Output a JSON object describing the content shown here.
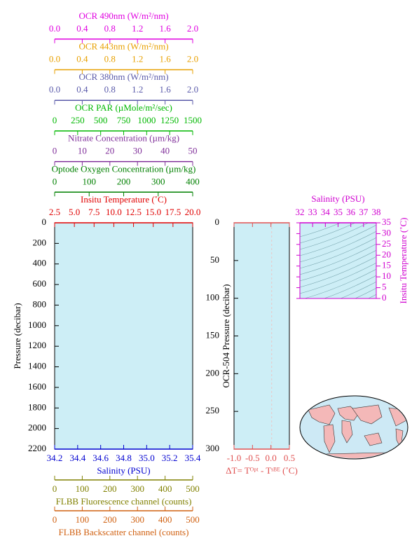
{
  "chart_data": [
    {
      "type": "profile",
      "ylabel": "Pressure (decibar)",
      "ylim": [
        0,
        2200
      ],
      "yticks": [
        0,
        200,
        400,
        600,
        800,
        1000,
        1200,
        1400,
        1600,
        1800,
        2000,
        2200
      ],
      "x_axes": [
        {
          "label": "Insitu Temperature (˚C)",
          "color": "#e00000",
          "side": "top",
          "xlim": [
            2.5,
            20
          ],
          "xticks": [
            2.5,
            {
              "value": 5,
              "label": "5.0"
            },
            7.5,
            {
              "value": 10,
              "label": "10.0"
            },
            12.5,
            {
              "value": 15,
              "label": "15.0"
            },
            17.5,
            {
              "value": 20,
              "label": "20.0"
            }
          ]
        },
        {
          "label": "Optode Oxygen Concentration (µm/kg)",
          "color": "#008000",
          "side": "top",
          "xlim": [
            0,
            400
          ],
          "xticks": [
            0,
            100,
            200,
            300,
            400
          ]
        },
        {
          "label": "Nitrate Concentration (µm/kg)",
          "color": "#80309a",
          "side": "top",
          "xlim": [
            0,
            50
          ],
          "xticks": [
            0,
            10,
            20,
            30,
            40,
            50
          ]
        },
        {
          "label": "OCR PAR (µMole/m²/sec)",
          "color": "#00b800",
          "side": "top",
          "xlim": [
            0,
            1500
          ],
          "xticks": [
            0,
            250,
            500,
            750,
            1000,
            1250,
            1500
          ]
        },
        {
          "label": "OCR 380nm (W/m²/nm)",
          "color": "#5a5aaa",
          "side": "top",
          "xlim": [
            0,
            2
          ],
          "xticks": [
            {
              "value": 0,
              "label": "0.0"
            },
            0.4,
            0.8,
            1.2,
            1.6,
            {
              "value": 2,
              "label": "2.0"
            }
          ]
        },
        {
          "label": "OCR 443nm (W/m²/nm)",
          "color": "#e8a000",
          "side": "top",
          "xlim": [
            0,
            2
          ],
          "xticks": [
            {
              "value": 0,
              "label": "0.0"
            },
            0.4,
            0.8,
            1.2,
            1.6,
            {
              "value": 2,
              "label": "2.0"
            }
          ]
        },
        {
          "label": "OCR 490nm (W/m²/nm)",
          "color": "#e000e0",
          "side": "top",
          "xlim": [
            0,
            2
          ],
          "xticks": [
            {
              "value": 0,
              "label": "0.0"
            },
            0.4,
            0.8,
            1.2,
            1.6,
            {
              "value": 2,
              "label": "2.0"
            }
          ]
        },
        {
          "label": "Salinity (PSU)",
          "color": "#0000d0",
          "side": "bottom",
          "xlim": [
            34.2,
            35.4
          ],
          "xticks": [
            34.2,
            34.4,
            34.6,
            34.8,
            {
              "value": 35,
              "label": "35.0"
            },
            35.2,
            35.4
          ]
        },
        {
          "label": "FLBB Fluorescence channel (counts)",
          "color": "#808000",
          "side": "bottom",
          "xlim": [
            0,
            500
          ],
          "xticks": [
            0,
            100,
            200,
            300,
            400,
            500
          ]
        },
        {
          "label": "FLBB Backscatter channel (counts)",
          "color": "#d06010",
          "side": "bottom",
          "xlim": [
            0,
            500
          ],
          "xticks": [
            0,
            100,
            200,
            300,
            400,
            500
          ]
        }
      ]
    },
    {
      "type": "profile",
      "ylabel": "OCR-504 Pressure (decibar)",
      "ylim": [
        0,
        300
      ],
      "yticks": [
        0,
        50,
        100,
        150,
        200,
        250,
        300
      ],
      "x_axes": [
        {
          "label": "ΔT= Tᴼᵖᵗ - Tˢᴮᴱ (˚C)",
          "color": "#e05050",
          "side": "bottom",
          "xlim": [
            -1,
            0.5
          ],
          "xticks": [
            {
              "value": -1,
              "label": "-1.0"
            },
            -0.5,
            {
              "value": 0,
              "label": "0.0"
            },
            0.5
          ]
        }
      ]
    },
    {
      "type": "ts",
      "color": "#d000d0",
      "xlabel": "Salinity (PSU)",
      "xlim": [
        32,
        38
      ],
      "xticks": [
        32,
        33,
        34,
        35,
        36,
        37,
        38
      ],
      "ylabel": "Insitu Temperature (˚C)",
      "ylim": [
        0,
        35
      ],
      "yticks": [
        0,
        5,
        10,
        15,
        20,
        25,
        30,
        35
      ]
    }
  ]
}
